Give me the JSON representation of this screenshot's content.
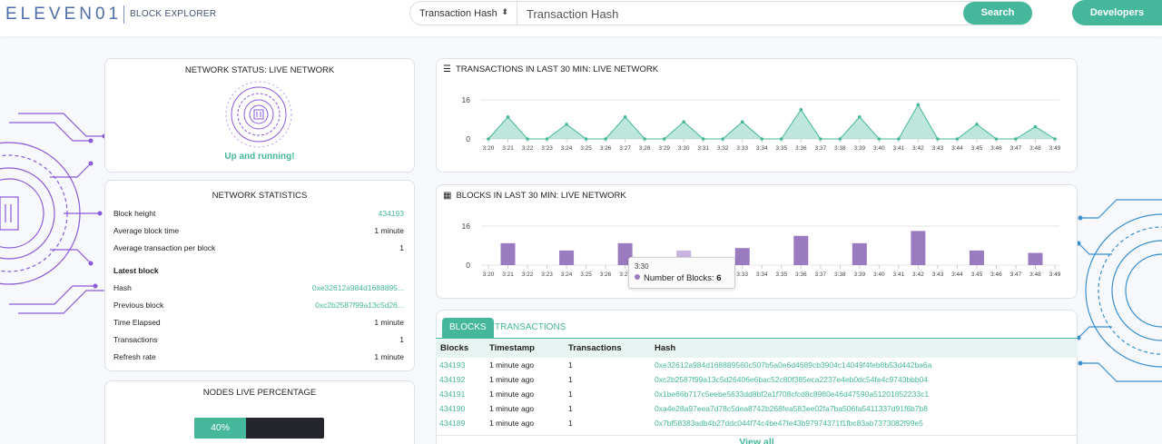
{
  "header": {
    "logo": "ELEVEN01",
    "subtitle": "BLOCK EXPLORER",
    "search_type": "Transaction Hash",
    "search_placeholder": "Transaction Hash",
    "search_button": "Search",
    "developers_button": "Developers"
  },
  "network_status": {
    "title": "NETWORK STATUS: LIVE NETWORK",
    "status": "Up and running!"
  },
  "network_statistics": {
    "title": "NETWORK STATISTICS",
    "rows": [
      {
        "label": "Block height",
        "value": "434193"
      },
      {
        "label": "Average block time",
        "value": "1 minute"
      },
      {
        "label": "Average transaction per block",
        "value": "1"
      }
    ],
    "latest_label": "Latest block",
    "latest_rows": [
      {
        "label": "Hash",
        "value": "0xe32612a984d1688895..."
      },
      {
        "label": "Previous block",
        "value": "0xc2b2587f99a13c5d26..."
      },
      {
        "label": "Time Elapsed",
        "value": "1 minute"
      },
      {
        "label": "Transactions",
        "value": "1"
      },
      {
        "label": "Refresh rate",
        "value": "1 minute"
      }
    ]
  },
  "nodes": {
    "title": "NODES LIVE PERCENTAGE",
    "percent_label": "40%",
    "percent": 0.4
  },
  "tx_chart_title": "TRANSACTIONS IN LAST 30 MIN: LIVE NETWORK",
  "blocks_chart_title": "BLOCKS IN LAST 30 MIN: LIVE NETWORK",
  "tooltip": {
    "time": "3:30",
    "label": "Number of Blocks:",
    "value": "6"
  },
  "chart_data": [
    {
      "type": "area",
      "title": "TRANSACTIONS IN LAST 30 MIN: LIVE NETWORK",
      "categories": [
        "3:20",
        "3:21",
        "3:22",
        "3:23",
        "3:24",
        "3:25",
        "3:26",
        "3:27",
        "3:28",
        "3:29",
        "3:30",
        "3:31",
        "3:32",
        "3:33",
        "3:34",
        "3:35",
        "3:36",
        "3:37",
        "3:38",
        "3:39",
        "3:40",
        "3:41",
        "3:42",
        "3:43",
        "3:44",
        "3:45",
        "3:46",
        "3:47",
        "3:48",
        "3:49"
      ],
      "values": [
        0,
        9,
        0,
        0,
        6,
        0,
        0,
        9,
        0,
        0,
        7,
        0,
        0,
        7,
        0,
        0,
        12,
        0,
        0,
        9,
        0,
        0,
        14,
        0,
        0,
        6,
        0,
        0,
        5,
        0
      ],
      "ylim": [
        0,
        16
      ],
      "yticks": [
        "16",
        "0"
      ],
      "grid": true,
      "color": "#45b79a"
    },
    {
      "type": "bar",
      "title": "BLOCKS IN LAST 30 MIN: LIVE NETWORK",
      "categories": [
        "3:20",
        "3:21",
        "3:22",
        "3:23",
        "3:24",
        "3:25",
        "3:26",
        "3:27",
        "3:28",
        "3:29",
        "3:30",
        "3:31",
        "3:32",
        "3:33",
        "3:34",
        "3:35",
        "3:36",
        "3:37",
        "3:38",
        "3:39",
        "3:40",
        "3:41",
        "3:42",
        "3:43",
        "3:44",
        "3:45",
        "3:46",
        "3:47",
        "3:48",
        "3:49"
      ],
      "values": [
        0,
        9,
        0,
        0,
        6,
        0,
        0,
        9,
        0,
        0,
        6,
        0,
        0,
        7,
        0,
        0,
        12,
        0,
        0,
        9,
        0,
        0,
        14,
        0,
        0,
        6,
        0,
        0,
        5,
        0
      ],
      "ylim": [
        0,
        16
      ],
      "yticks": [
        "16",
        "0"
      ],
      "grid": true,
      "color": "#9b7bbf"
    }
  ],
  "blocks_table": {
    "tabs": [
      "BLOCKS",
      "TRANSACTIONS"
    ],
    "columns": [
      "Blocks",
      "Timestamp",
      "Transactions",
      "Hash"
    ],
    "rows": [
      {
        "block": "434193",
        "timestamp": "1 minute ago",
        "tx": "1",
        "hash": "0xe32612a984d168889560c507b5a0e6d4689cb3904c14049f4feb8b53d442ba6a"
      },
      {
        "block": "434192",
        "timestamp": "1 minute ago",
        "tx": "1",
        "hash": "0xc2b2587f99a13c5d26406e6bac52c80f385eca2237e4eb0dc54fe4c9743bbb04"
      },
      {
        "block": "434191",
        "timestamp": "1 minute ago",
        "tx": "1",
        "hash": "0x1be66b717c5eebe5633dd8bf2a1f708cfcd8c8980e46d47590a51201852233c1"
      },
      {
        "block": "434190",
        "timestamp": "1 minute ago",
        "tx": "1",
        "hash": "0xa4e28a97eea7d78c5dea8742b268fea583ee02fa7ba506fa5411337d91f6b7b8"
      },
      {
        "block": "434189",
        "timestamp": "1 minute ago",
        "tx": "1",
        "hash": "0x7bf58383adb4b27ddc044f74c4be47fe43b97974371f1fbc83ab7373082f99e5"
      }
    ],
    "view_all": "View all"
  }
}
